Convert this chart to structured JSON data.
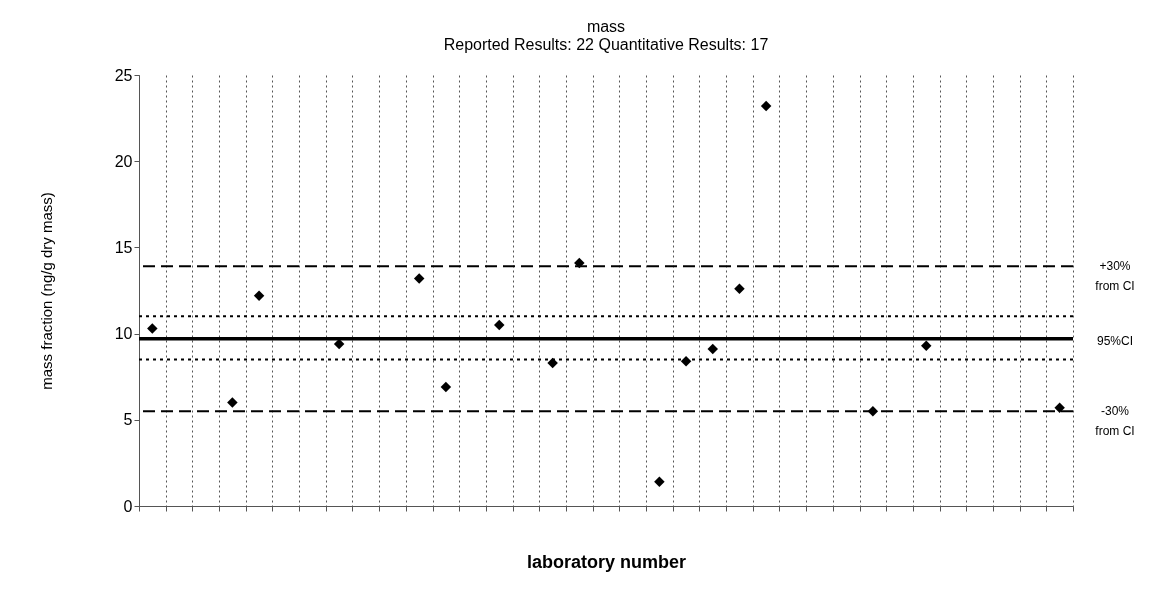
{
  "chart_data": {
    "type": "scatter",
    "title": "mass",
    "subtitle": "Reported Results:  22        Quantitative Results:  17",
    "xlabel": "laboratory number",
    "ylabel": "mass fraction (ng/g dry mass)",
    "categories": [
      null,
      null,
      null,
      null,
      null,
      null,
      null,
      null,
      null,
      null,
      null,
      null,
      null,
      null,
      null,
      null,
      null,
      null,
      null,
      null,
      null,
      null,
      null,
      null,
      null,
      null,
      null,
      null,
      null,
      null,
      null,
      null,
      null,
      null,
      null
    ],
    "series": [
      {
        "color": "#000000",
        "values": [
          10.3,
          null,
          null,
          6.0,
          12.2,
          null,
          null,
          9.4,
          null,
          null,
          13.2,
          6.9,
          null,
          10.5,
          null,
          8.3,
          14.1,
          null,
          null,
          1.4,
          8.4,
          9.1,
          12.6,
          23.2,
          null,
          null,
          null,
          5.5,
          null,
          9.3,
          null,
          null,
          null,
          null,
          5.7
        ]
      }
    ],
    "ylim": [
      0,
      25
    ],
    "yticks": [
      0,
      5,
      10,
      15,
      20,
      25
    ],
    "grid": "x",
    "marker": "diamond",
    "legend": false,
    "ref_lines": [
      {
        "axis": "y",
        "value": 13.9,
        "label": "+30%\nfrom CI",
        "color": "#000000",
        "line_style": "dashed"
      },
      {
        "axis": "y",
        "value": 11.0,
        "label": null,
        "color": "#000000",
        "line_style": "dotted"
      },
      {
        "axis": "y",
        "value": 9.7,
        "label": null,
        "color": "#000000",
        "line_style": "solid"
      },
      {
        "axis": "y",
        "value": 8.5,
        "label": null,
        "color": "#000000",
        "line_style": "dotted"
      },
      {
        "axis": "y",
        "value": 5.5,
        "label": "-30%\nfrom CI",
        "color": "#000000",
        "line_style": "dashed"
      }
    ],
    "annotations": [
      "95%CI"
    ]
  }
}
